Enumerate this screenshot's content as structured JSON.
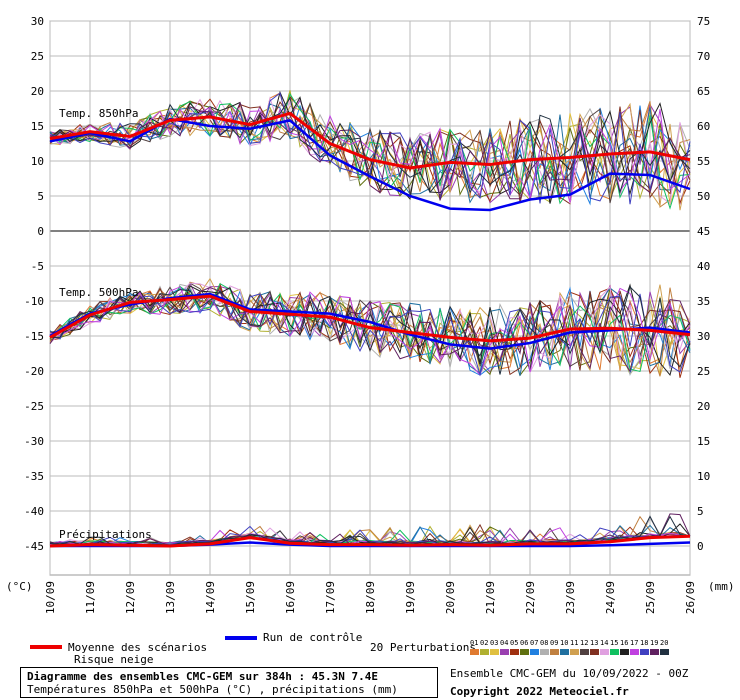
{
  "chart_data": {
    "type": "line",
    "x": [
      "10/09",
      "11/09",
      "12/09",
      "13/09",
      "14/09",
      "15/09",
      "16/09",
      "17/09",
      "18/09",
      "19/09",
      "20/09",
      "21/09",
      "22/09",
      "23/09",
      "24/09",
      "25/09",
      "26/09"
    ],
    "left_axis": {
      "ticks": [
        30,
        25,
        20,
        15,
        10,
        5,
        0,
        -5,
        -10,
        -15,
        -20,
        -25,
        -30,
        -35,
        -40,
        -45
      ],
      "unit": "(°C)"
    },
    "right_axis": {
      "ticks": [
        75,
        70,
        65,
        60,
        55,
        50,
        45,
        40,
        35,
        30,
        25,
        20,
        15,
        10,
        5,
        0
      ],
      "unit": "(mm)"
    },
    "panels": [
      {
        "label": "Temp. 850hPa",
        "series": [
          {
            "name": "Moyenne des scénarios",
            "color": "#ee0000",
            "values": [
              13.2,
              14.2,
              13.5,
              15.8,
              16.3,
              15.2,
              16.8,
              12.5,
              10.2,
              9.0,
              9.8,
              9.5,
              10.2,
              10.5,
              11.0,
              11.3,
              10.2
            ]
          },
          {
            "name": "Run de contrôle",
            "color": "#0000ee",
            "values": [
              12.8,
              14.0,
              12.8,
              16.0,
              15.0,
              14.6,
              15.8,
              10.8,
              7.8,
              5.0,
              3.2,
              3.0,
              4.5,
              5.2,
              8.2,
              8.0,
              6.0
            ]
          }
        ]
      },
      {
        "label": "Temp. 500hPa",
        "series": [
          {
            "name": "Moyenne des scénarios",
            "color": "#ee0000",
            "values": [
              -15.2,
              -12.0,
              -10.2,
              -9.8,
              -9.3,
              -11.5,
              -11.9,
              -12.3,
              -13.8,
              -14.5,
              -15.2,
              -15.7,
              -15.3,
              -14.0,
              -13.9,
              -14.2,
              -14.8
            ]
          },
          {
            "name": "Run de contrôle",
            "color": "#0000ee",
            "values": [
              -15.0,
              -11.8,
              -10.5,
              -9.6,
              -9.0,
              -11.2,
              -11.5,
              -11.8,
              -13.0,
              -14.8,
              -16.2,
              -16.8,
              -16.0,
              -14.5,
              -14.2,
              -13.8,
              -14.5
            ]
          }
        ]
      },
      {
        "label": "Précipitations",
        "series": [
          {
            "name": "Moyenne des scénarios",
            "color": "#ee0000",
            "values": [
              0,
              0.2,
              0.1,
              0,
              0.3,
              1.2,
              0.4,
              0.2,
              0.2,
              0.1,
              0.2,
              0.1,
              0.3,
              0.3,
              0.6,
              1.2,
              1.4
            ]
          },
          {
            "name": "Run de contrôle",
            "color": "#0000ee",
            "values": [
              0,
              0,
              0,
              0,
              0.2,
              0.5,
              0.2,
              0,
              0,
              0,
              0,
              0,
              0,
              0,
              0.1,
              0.3,
              0.5
            ]
          }
        ]
      }
    ],
    "perturbation_ids": [
      "01",
      "02",
      "03",
      "04",
      "05",
      "06",
      "07",
      "08",
      "09",
      "10",
      "11",
      "12",
      "13",
      "14",
      "15",
      "16",
      "17",
      "18",
      "19",
      "20"
    ],
    "perturbation_colors": [
      "#e07a30",
      "#b0b030",
      "#e0c040",
      "#9a3fb0",
      "#a03010",
      "#607010",
      "#2080e0",
      "#b0b0b0",
      "#c08040",
      "#2070a0",
      "#d0a050",
      "#504040",
      "#803020",
      "#e0a0e0",
      "#10c060",
      "#202020",
      "#c040e0",
      "#4040c0",
      "#602060",
      "#203040"
    ]
  },
  "legend": {
    "mean_label": "Moyenne des scénarios",
    "snow_label": "Risque neige",
    "control_label": "Run de contrôle",
    "perturbations_label": "20 Perturbations",
    "mean_color": "#ee0000",
    "control_color": "#0000ee"
  },
  "info": {
    "title": "Diagramme des ensembles CMC-GEM sur 384h : 45.3N 7.4E",
    "subtitle": "Températures 850hPa et 500hPa (°C) , précipitations (mm)",
    "ensemble": "Ensemble CMC-GEM du 10/09/2022 - 00Z",
    "copyright": "Copyright 2022 Meteociel.fr"
  }
}
